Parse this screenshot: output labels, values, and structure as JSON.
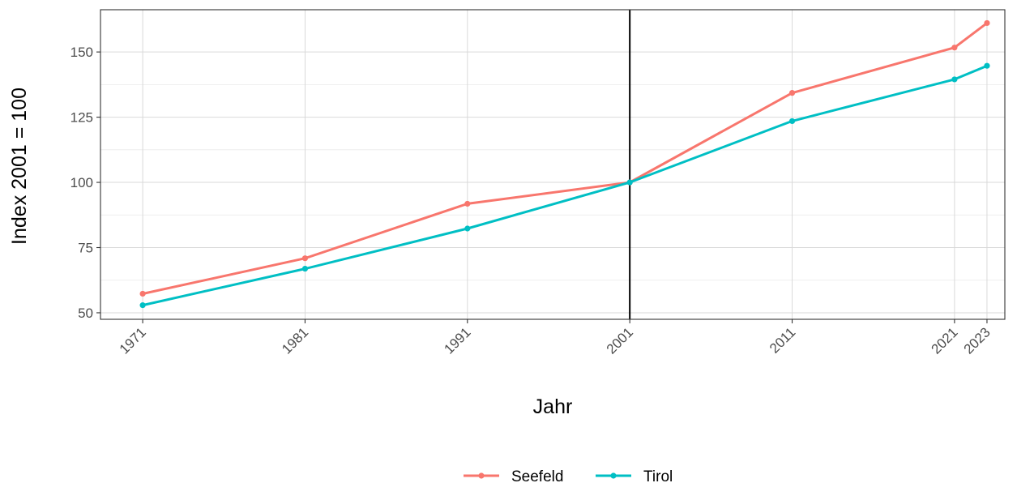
{
  "chart_data": {
    "type": "line",
    "xlabel": "Jahr",
    "ylabel": "Index 2001 = 100",
    "x": [
      1971,
      1981,
      1991,
      2001,
      2011,
      2021,
      2023
    ],
    "x_tick_labels": [
      "1971",
      "1981",
      "1991",
      "2001",
      "2011",
      "2021",
      "2023"
    ],
    "y_ticks": [
      50,
      75,
      100,
      125,
      150
    ],
    "y_tick_labels": [
      "50",
      "75",
      "100",
      "125",
      "150"
    ],
    "xlim": [
      1968.4,
      2024.1
    ],
    "ylim": [
      47.5,
      166.2
    ],
    "grid": true,
    "reference_line": {
      "x": 2001,
      "color": "#000000"
    },
    "legend_position": "bottom",
    "series": [
      {
        "name": "Seefeld",
        "color": "#F8766D",
        "values": [
          57.3,
          70.9,
          91.8,
          100,
          134.3,
          151.7,
          161.1
        ]
      },
      {
        "name": "Tirol",
        "color": "#00BFC4",
        "values": [
          52.9,
          66.9,
          82.3,
          100,
          123.5,
          139.5,
          144.7
        ]
      }
    ]
  }
}
